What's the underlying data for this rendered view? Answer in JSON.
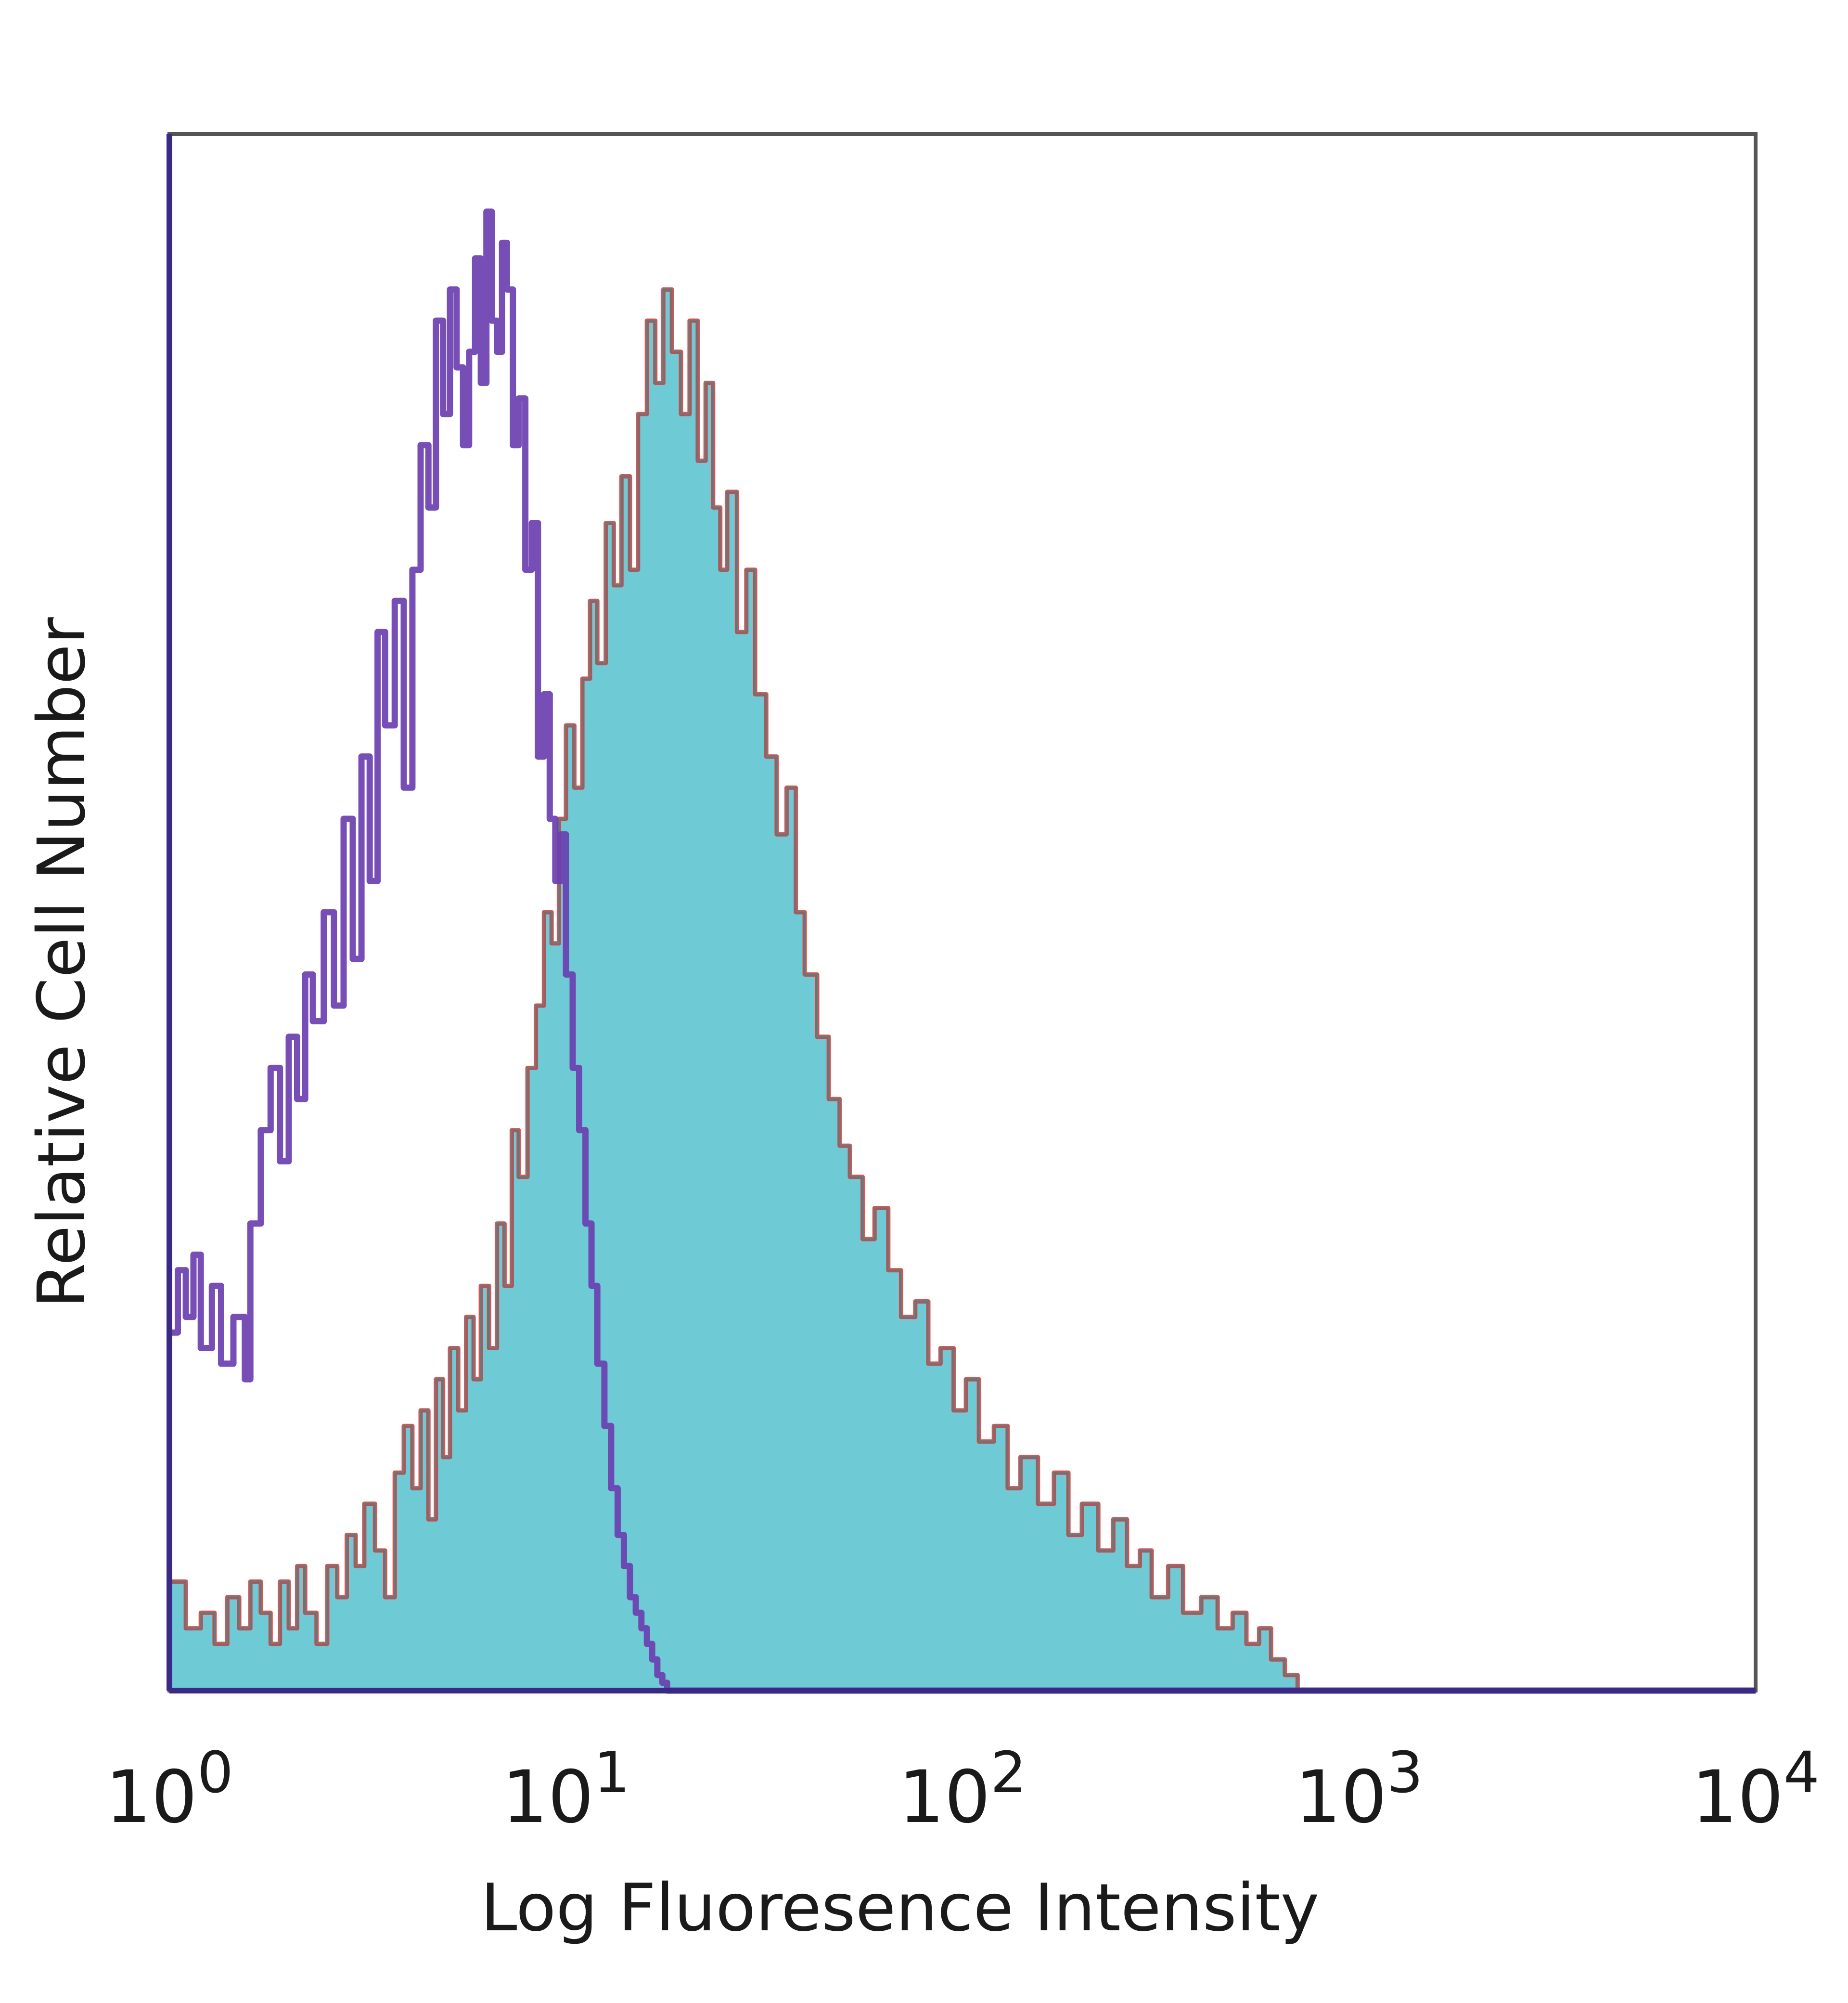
{
  "chart_data": {
    "type": "area",
    "xlabel": "Log Fluoresence Intensity",
    "ylabel": "Relative Cell Number",
    "x_scale": "log",
    "xlim": [
      1,
      10000
    ],
    "ylim": [
      0,
      1
    ],
    "x_ticks": [
      {
        "value": 1,
        "base": "10",
        "exp": "0"
      },
      {
        "value": 10,
        "base": "10",
        "exp": "1"
      },
      {
        "value": 100,
        "base": "10",
        "exp": "2"
      },
      {
        "value": 1000,
        "base": "10",
        "exp": "3"
      },
      {
        "value": 10000,
        "base": "10",
        "exp": "4"
      }
    ],
    "grid": false,
    "legend": "none",
    "colors": {
      "filled_fill": "#6ecbd6",
      "filled_edge": "#2a8f97",
      "filled_outline": "#e8302c",
      "control": "#6a3fb0",
      "control_tail": "#3b3fc6",
      "axis": "#3a2a86"
    },
    "series": [
      {
        "style": "outline",
        "color": "#6a3fb0",
        "x": [
          1.0,
          1.05,
          1.1,
          1.15,
          1.2,
          1.28,
          1.35,
          1.45,
          1.55,
          1.6,
          1.7,
          1.8,
          1.9,
          2.0,
          2.1,
          2.2,
          2.3,
          2.45,
          2.6,
          2.75,
          2.9,
          3.05,
          3.2,
          3.35,
          3.5,
          3.7,
          3.9,
          4.1,
          4.3,
          4.5,
          4.7,
          4.9,
          5.1,
          5.3,
          5.5,
          5.7,
          5.9,
          6.1,
          6.3,
          6.5,
          6.7,
          6.9,
          7.1,
          7.35,
          7.6,
          7.9,
          8.2,
          8.5,
          8.8,
          9.1,
          9.4,
          9.7,
          10.0,
          10.4,
          10.8,
          11.2,
          11.6,
          12.0,
          12.5,
          13.0,
          13.5,
          14.0,
          14.5,
          15.0,
          15.5,
          16.0,
          16.5,
          17.0,
          17.5,
          18.0,
          100,
          1000,
          10000
        ],
        "y": [
          0.23,
          0.27,
          0.24,
          0.28,
          0.22,
          0.26,
          0.21,
          0.24,
          0.2,
          0.3,
          0.36,
          0.4,
          0.34,
          0.42,
          0.38,
          0.46,
          0.43,
          0.5,
          0.44,
          0.56,
          0.47,
          0.6,
          0.52,
          0.68,
          0.62,
          0.7,
          0.58,
          0.72,
          0.8,
          0.76,
          0.88,
          0.82,
          0.9,
          0.85,
          0.8,
          0.86,
          0.92,
          0.84,
          0.95,
          0.88,
          0.86,
          0.93,
          0.9,
          0.8,
          0.83,
          0.72,
          0.75,
          0.6,
          0.64,
          0.56,
          0.52,
          0.55,
          0.46,
          0.4,
          0.36,
          0.3,
          0.26,
          0.21,
          0.17,
          0.13,
          0.1,
          0.08,
          0.06,
          0.05,
          0.04,
          0.03,
          0.02,
          0.01,
          0.005,
          0.0,
          0.0,
          0.0,
          0.0
        ]
      },
      {
        "style": "filled",
        "color": "#6ecbd6",
        "x": [
          1.0,
          1.1,
          1.2,
          1.3,
          1.4,
          1.5,
          1.6,
          1.7,
          1.8,
          1.9,
          2.0,
          2.1,
          2.2,
          2.35,
          2.5,
          2.65,
          2.8,
          2.95,
          3.1,
          3.3,
          3.5,
          3.7,
          3.9,
          4.1,
          4.3,
          4.5,
          4.7,
          4.9,
          5.1,
          5.35,
          5.6,
          5.85,
          6.1,
          6.4,
          6.7,
          7.0,
          7.3,
          7.6,
          8.0,
          8.4,
          8.8,
          9.2,
          9.6,
          10.0,
          10.5,
          11.0,
          11.5,
          12.0,
          12.6,
          13.2,
          13.8,
          14.5,
          15.2,
          16.0,
          16.8,
          17.6,
          18.5,
          19.5,
          20.5,
          21.5,
          22.5,
          23.5,
          24.5,
          25.5,
          27.0,
          28.5,
          30.0,
          32.0,
          34.0,
          36.0,
          38.0,
          40.0,
          43.0,
          46.0,
          49.0,
          52.0,
          56.0,
          60.0,
          65.0,
          70.0,
          76.0,
          82.0,
          88.0,
          95.0,
          102,
          110,
          120,
          130,
          140,
          155,
          170,
          185,
          200,
          220,
          240,
          260,
          280,
          300,
          330,
          360,
          400,
          440,
          480,
          520,
          560,
          600,
          650,
          700,
          10000
        ],
        "y": [
          0.07,
          0.04,
          0.05,
          0.03,
          0.06,
          0.04,
          0.07,
          0.05,
          0.03,
          0.07,
          0.04,
          0.08,
          0.05,
          0.03,
          0.08,
          0.06,
          0.1,
          0.08,
          0.12,
          0.09,
          0.06,
          0.14,
          0.17,
          0.13,
          0.18,
          0.11,
          0.2,
          0.15,
          0.22,
          0.18,
          0.24,
          0.2,
          0.26,
          0.22,
          0.3,
          0.26,
          0.36,
          0.33,
          0.4,
          0.44,
          0.5,
          0.48,
          0.56,
          0.62,
          0.58,
          0.65,
          0.7,
          0.66,
          0.75,
          0.71,
          0.78,
          0.72,
          0.82,
          0.88,
          0.84,
          0.9,
          0.86,
          0.82,
          0.88,
          0.79,
          0.84,
          0.76,
          0.72,
          0.77,
          0.68,
          0.72,
          0.64,
          0.6,
          0.55,
          0.58,
          0.5,
          0.46,
          0.42,
          0.38,
          0.35,
          0.33,
          0.29,
          0.31,
          0.27,
          0.24,
          0.25,
          0.21,
          0.22,
          0.18,
          0.2,
          0.16,
          0.17,
          0.13,
          0.15,
          0.12,
          0.14,
          0.1,
          0.12,
          0.09,
          0.11,
          0.08,
          0.09,
          0.06,
          0.08,
          0.05,
          0.06,
          0.04,
          0.05,
          0.03,
          0.04,
          0.02,
          0.01,
          0.0,
          0.0
        ]
      }
    ]
  }
}
